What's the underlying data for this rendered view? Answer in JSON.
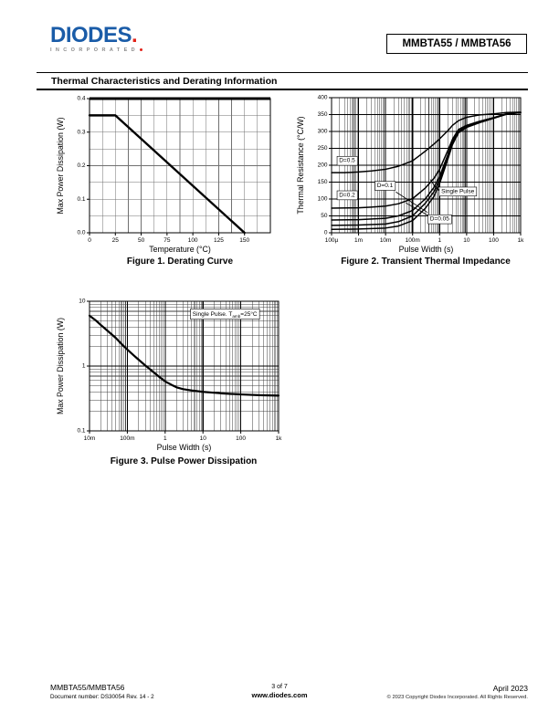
{
  "page": {
    "brand": {
      "logo_text": "DIODES",
      "logo_dot": ".",
      "logo_sub": "INCORPORATED"
    },
    "part_number": "MMBTA55 / MMBTA56",
    "section_title": "Thermal Characteristics and Derating Information",
    "footer": {
      "part": "MMBTA55/MMBTA56",
      "doc": "Document number: DS30054 Rev. 14 - 2",
      "page_num": "3 of 7",
      "site": "www.diodes.com",
      "date": "April 2023",
      "copyright": "© 2023 Copyright Diodes Incorporated. All Rights Reserved."
    },
    "colors": {
      "logo_blue": "#1A5CA8",
      "logo_red": "#E2231A",
      "ink": "#000000"
    }
  },
  "chart_data": [
    {
      "id": "figure1",
      "type": "line",
      "title": "Figure 1. Derating Curve",
      "xlabel": "Temperature (°C)",
      "ylabel": "Max Power Dissipation (W)",
      "xscale": "linear",
      "yscale": "linear",
      "xlim": [
        0,
        175
      ],
      "ylim": [
        0,
        0.4
      ],
      "x_minor_step": 12.5,
      "y_minor_step": 0.05,
      "xticks": [
        [
          0,
          "0"
        ],
        [
          25,
          "25"
        ],
        [
          50,
          "50"
        ],
        [
          75,
          "75"
        ],
        [
          100,
          "100"
        ],
        [
          125,
          "125"
        ],
        [
          150,
          "150"
        ]
      ],
      "yticks": [
        [
          0,
          "0.0"
        ],
        [
          0.1,
          "0.1"
        ],
        [
          0.2,
          "0.2"
        ],
        [
          0.3,
          "0.3"
        ],
        [
          0.4,
          "0.4"
        ]
      ],
      "grid": true,
      "series": [
        {
          "name": "derating",
          "points": [
            [
              0,
              0.35
            ],
            [
              25,
              0.35
            ],
            [
              150,
              0
            ]
          ]
        }
      ],
      "annotations": []
    },
    {
      "id": "figure2",
      "type": "line",
      "title": "Figure 2. Transient Thermal Impedance",
      "xlabel": "Pulse Width (s)",
      "ylabel": "Thermal Resistance (°C/W)",
      "xscale": "log",
      "yscale": "linear",
      "xlim": [
        0.0001,
        1000
      ],
      "ylim": [
        0,
        400
      ],
      "y_minor_step": 50,
      "xticks": [
        [
          0.0001,
          "100µ"
        ],
        [
          0.001,
          "1m"
        ],
        [
          0.01,
          "10m"
        ],
        [
          0.1,
          "100m"
        ],
        [
          1,
          "1"
        ],
        [
          10,
          "10"
        ],
        [
          100,
          "100"
        ],
        [
          1000,
          "1k"
        ]
      ],
      "yticks": [
        [
          0,
          "0"
        ],
        [
          50,
          "50"
        ],
        [
          100,
          "100"
        ],
        [
          150,
          "150"
        ],
        [
          200,
          "200"
        ],
        [
          250,
          "250"
        ],
        [
          300,
          "300"
        ],
        [
          350,
          "350"
        ],
        [
          400,
          "400"
        ]
      ],
      "grid": true,
      "series": [
        {
          "name": "D=0.5",
          "points": [
            [
              0.0001,
              178
            ],
            [
              0.0003,
              178
            ],
            [
              0.001,
              180
            ],
            [
              0.003,
              183
            ],
            [
              0.01,
              188
            ],
            [
              0.03,
              197
            ],
            [
              0.1,
              213
            ],
            [
              0.3,
              242
            ],
            [
              0.6,
              262
            ],
            [
              1,
              278
            ],
            [
              2,
              302
            ],
            [
              3,
              318
            ],
            [
              5,
              332
            ],
            [
              10,
              342
            ],
            [
              30,
              349
            ],
            [
              100,
              352
            ],
            [
              300,
              356
            ],
            [
              1000,
              357
            ]
          ]
        },
        {
          "name": "D=0.2",
          "points": [
            [
              0.0001,
              73
            ],
            [
              0.001,
              74
            ],
            [
              0.003,
              76
            ],
            [
              0.01,
              79
            ],
            [
              0.03,
              86
            ],
            [
              0.1,
              101
            ],
            [
              0.3,
              133
            ],
            [
              0.6,
              160
            ],
            [
              1,
              188
            ],
            [
              2,
              243
            ],
            [
              3,
              277
            ],
            [
              5,
              306
            ],
            [
              10,
              318
            ],
            [
              30,
              330
            ],
            [
              100,
              341
            ],
            [
              300,
              352
            ],
            [
              1000,
              356
            ]
          ]
        },
        {
          "name": "D=0.1",
          "points": [
            [
              0.0001,
              38
            ],
            [
              0.001,
              39
            ],
            [
              0.01,
              43
            ],
            [
              0.03,
              50
            ],
            [
              0.1,
              66
            ],
            [
              0.3,
              101
            ],
            [
              0.6,
              133
            ],
            [
              1,
              167
            ],
            [
              2,
              230
            ],
            [
              3,
              270
            ],
            [
              5,
              301
            ],
            [
              10,
              315
            ],
            [
              30,
              328
            ],
            [
              100,
              340
            ],
            [
              300,
              352
            ],
            [
              1000,
              356
            ]
          ]
        },
        {
          "name": "D=0.05",
          "points": [
            [
              0.0001,
              22
            ],
            [
              0.001,
              23
            ],
            [
              0.01,
              26
            ],
            [
              0.03,
              33
            ],
            [
              0.1,
              50
            ],
            [
              0.3,
              88
            ],
            [
              0.6,
              120
            ],
            [
              1,
              157
            ],
            [
              2,
              224
            ],
            [
              3,
              265
            ],
            [
              5,
              298
            ],
            [
              10,
              313
            ],
            [
              30,
              327
            ],
            [
              100,
              339
            ],
            [
              300,
              351
            ],
            [
              1000,
              356
            ]
          ]
        },
        {
          "name": "Single Pulse",
          "points": [
            [
              0.0001,
              10
            ],
            [
              0.001,
              11
            ],
            [
              0.01,
              14
            ],
            [
              0.03,
              20
            ],
            [
              0.1,
              36
            ],
            [
              0.3,
              73
            ],
            [
              0.6,
              106
            ],
            [
              1,
              146
            ],
            [
              2,
              217
            ],
            [
              3,
              261
            ],
            [
              5,
              296
            ],
            [
              10,
              312
            ],
            [
              30,
              326
            ],
            [
              100,
              339
            ],
            [
              300,
              351
            ],
            [
              1000,
              356
            ]
          ]
        }
      ],
      "annotations": [
        {
          "text": "D=0.5",
          "x": 0.00019,
          "y": 213,
          "boxed": true
        },
        {
          "text": "D=0.2",
          "x": 0.00019,
          "y": 111,
          "boxed": true
        },
        {
          "text": "D=0.1",
          "x": 0.0048,
          "y": 139,
          "boxed": true,
          "leaders": [
            {
              "from": [
                0.024,
                121
              ],
              "to": [
                0.36,
                60
              ]
            }
          ]
        },
        {
          "text": "Single Pulse",
          "x": 1.15,
          "y": 122,
          "boxed": true,
          "arrow_at": [
            0.8,
            127
          ],
          "leaders": [
            {
              "from": [
                0.8,
                127
              ],
              "to": [
                0.45,
                158
              ]
            }
          ]
        },
        {
          "text": "D=0.05",
          "x": 0.44,
          "y": 40,
          "boxed": true,
          "leaders": [
            {
              "from": [
                0.4,
                50
              ],
              "to": [
                0.055,
                89
              ]
            }
          ]
        }
      ]
    },
    {
      "id": "figure3",
      "type": "line",
      "title": "Figure 3. Pulse Power Dissipation",
      "xlabel": "Pulse Width (s)",
      "ylabel": "Max Power Dissipation (W)",
      "xscale": "log",
      "yscale": "log",
      "xlim": [
        0.01,
        1000
      ],
      "ylim": [
        0.1,
        10
      ],
      "xticks": [
        [
          0.01,
          "10m"
        ],
        [
          0.1,
          "100m"
        ],
        [
          1,
          "1"
        ],
        [
          10,
          "10"
        ],
        [
          100,
          "100"
        ],
        [
          1000,
          "1k"
        ]
      ],
      "yticks": [
        [
          0.1,
          "0.1"
        ],
        [
          1,
          "1"
        ],
        [
          10,
          "10"
        ]
      ],
      "grid": true,
      "series": [
        {
          "name": "single-pulse-power",
          "points": [
            [
              0.01,
              6.0
            ],
            [
              0.015,
              5.0
            ],
            [
              0.02,
              4.3
            ],
            [
              0.03,
              3.5
            ],
            [
              0.05,
              2.7
            ],
            [
              0.07,
              2.2
            ],
            [
              0.1,
              1.8
            ],
            [
              0.15,
              1.45
            ],
            [
              0.2,
              1.25
            ],
            [
              0.3,
              1.02
            ],
            [
              0.5,
              0.8
            ],
            [
              0.7,
              0.68
            ],
            [
              1,
              0.58
            ],
            [
              1.5,
              0.51
            ],
            [
              2,
              0.47
            ],
            [
              3,
              0.44
            ],
            [
              5,
              0.42
            ],
            [
              10,
              0.4
            ],
            [
              30,
              0.38
            ],
            [
              100,
              0.365
            ],
            [
              300,
              0.356
            ],
            [
              1000,
              0.35
            ]
          ]
        }
      ],
      "annotations": [
        {
          "pre": "Single Pulse. T",
          "sub": "amb",
          "post": "=25°C",
          "x": 38,
          "y": 6.3,
          "boxed": true,
          "anchor": "middle"
        }
      ]
    }
  ]
}
